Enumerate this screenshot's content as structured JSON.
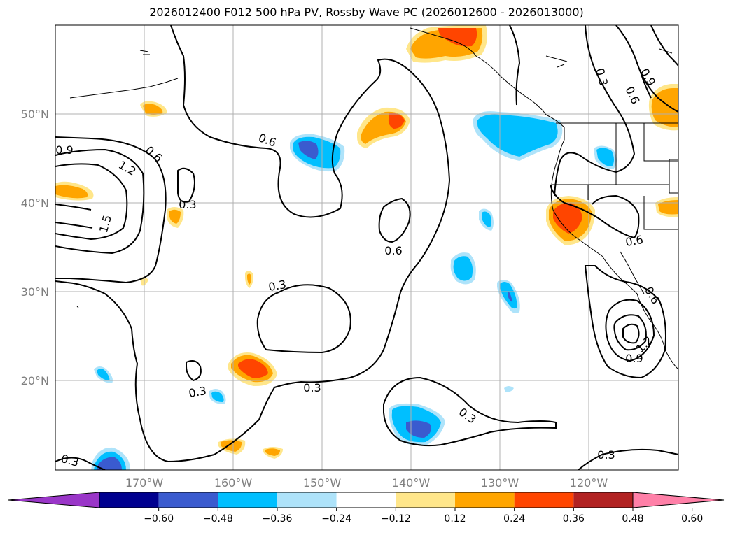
{
  "title": "2026012400 F012 500 hPa PV, Rossby Wave PC (2026012600 - 2026013000)",
  "lat_labels": [
    "50°N",
    "40°N",
    "30°N",
    "20°N"
  ],
  "lon_labels": [
    "170°W",
    "160°W",
    "150°W",
    "140°W",
    "130°W",
    "120°W"
  ],
  "contour_labels": [
    "0.9",
    "1.2",
    "0.6",
    "1.5",
    "0.3",
    "0.6",
    "0.6",
    "0.3",
    "0.3",
    "0.3",
    "0.3",
    "0.3",
    "0.3",
    "0.3",
    "0.6",
    "0.9",
    "0.6",
    "0.6",
    "0.9",
    "1.2",
    "0.3"
  ],
  "colorbar": {
    "tick_labels": [
      "−0.60",
      "−0.48",
      "−0.36",
      "−0.24",
      "−0.12",
      "0.12",
      "0.24",
      "0.36",
      "0.48",
      "0.60"
    ],
    "colors": [
      "#9a36c8",
      "#00008f",
      "#3a5bcf",
      "#00bfff",
      "#aee3fa",
      "#ffffff",
      "#ffe68a",
      "#ffa500",
      "#ff4500",
      "#b22222",
      "#ff80a8"
    ]
  }
}
